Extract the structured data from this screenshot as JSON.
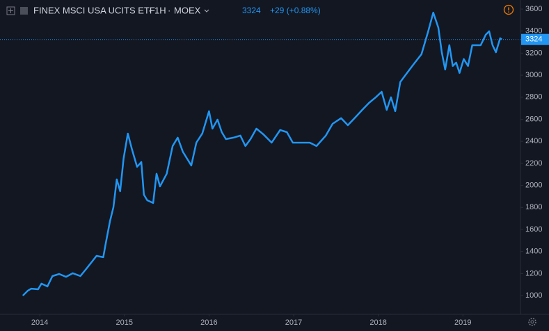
{
  "chart_data": {
    "type": "line",
    "symbol": "FINEX MSCI USA UCITS ETF",
    "interval": "1H",
    "exchange": "MOEX",
    "last_price": 3324,
    "change": "+29 (+0.88%)",
    "xlim": [
      2013.53,
      2019.68
    ],
    "xticks": [
      2014,
      2015,
      2016,
      2017,
      2018,
      2019
    ],
    "ylim": [
      830,
      3682
    ],
    "yticks": [
      1000,
      1200,
      1400,
      1600,
      1800,
      2000,
      2200,
      2400,
      2600,
      2800,
      3000,
      3200,
      3400,
      3600
    ],
    "grid": false,
    "color": "#2196f3",
    "x": [
      2013.8,
      2013.86,
      2013.9,
      2013.98,
      2014.02,
      2014.09,
      2014.15,
      2014.23,
      2014.31,
      2014.39,
      2014.48,
      2014.56,
      2014.67,
      2014.75,
      2014.78,
      2014.83,
      2014.87,
      2014.91,
      2014.95,
      2014.99,
      2015.04,
      2015.09,
      2015.15,
      2015.2,
      2015.23,
      2015.27,
      2015.34,
      2015.38,
      2015.42,
      2015.5,
      2015.57,
      2015.63,
      2015.69,
      2015.75,
      2015.79,
      2015.85,
      2015.92,
      2016.0,
      2016.04,
      2016.1,
      2016.15,
      2016.2,
      2016.29,
      2016.37,
      2016.43,
      2016.49,
      2016.56,
      2016.64,
      2016.74,
      2016.84,
      2016.92,
      2016.99,
      2017.09,
      2017.19,
      2017.27,
      2017.38,
      2017.46,
      2017.56,
      2017.64,
      2017.72,
      2017.81,
      2017.89,
      2017.97,
      2018.04,
      2018.1,
      2018.15,
      2018.2,
      2018.26,
      2018.34,
      2018.42,
      2018.51,
      2018.59,
      2018.65,
      2018.71,
      2018.75,
      2018.79,
      2018.84,
      2018.88,
      2018.92,
      2018.96,
      2019.01,
      2019.06,
      2019.11,
      2019.21,
      2019.27,
      2019.31,
      2019.35,
      2019.39,
      2019.44,
      2019.46
    ],
    "values": [
      1000,
      1045,
      1063,
      1057,
      1108,
      1083,
      1177,
      1196,
      1170,
      1203,
      1177,
      1253,
      1360,
      1348,
      1474,
      1676,
      1802,
      2054,
      1947,
      2243,
      2470,
      2326,
      2168,
      2212,
      1915,
      1865,
      1840,
      2105,
      1991,
      2105,
      2357,
      2433,
      2306,
      2231,
      2180,
      2388,
      2470,
      2673,
      2515,
      2597,
      2483,
      2420,
      2433,
      2452,
      2357,
      2420,
      2515,
      2464,
      2388,
      2502,
      2483,
      2388,
      2388,
      2388,
      2357,
      2452,
      2559,
      2610,
      2546,
      2610,
      2685,
      2748,
      2799,
      2849,
      2685,
      2799,
      2673,
      2938,
      3020,
      3102,
      3190,
      3398,
      3568,
      3430,
      3208,
      3051,
      3272,
      3083,
      3114,
      3020,
      3146,
      3083,
      3272,
      3272,
      3367,
      3398,
      3272,
      3208,
      3335,
      3324
    ]
  }
}
